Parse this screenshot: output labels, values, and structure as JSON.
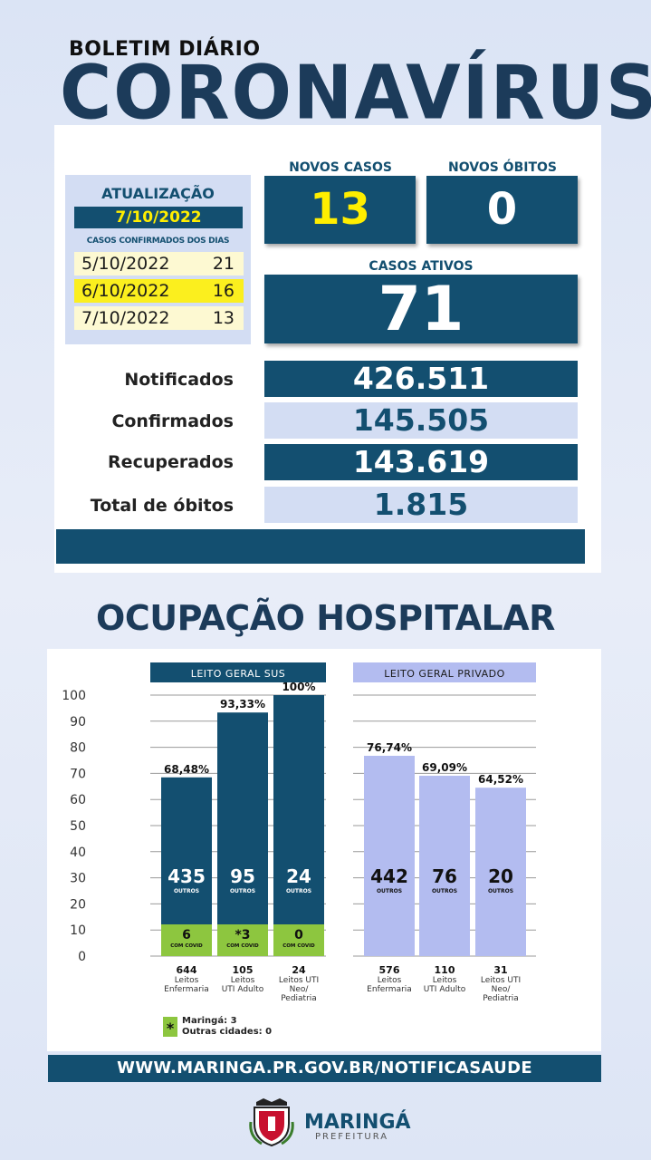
{
  "header": {
    "bulletin": "BOLETIM DIÁRIO",
    "title": "CORONAVÍRUS"
  },
  "update": {
    "label": "ATUALIZAÇÃO",
    "date": "7/10/2022",
    "cases_by_day_label": "CASOS CONFIRMADOS DOS DIAS",
    "days": [
      {
        "date": "5/10/2022",
        "value": "21"
      },
      {
        "date": "6/10/2022",
        "value": "16"
      },
      {
        "date": "7/10/2022",
        "value": "13"
      }
    ]
  },
  "stats": {
    "new_cases_label": "NOVOS CASOS",
    "new_cases": "13",
    "new_deaths_label": "NOVOS ÓBITOS",
    "new_deaths": "0",
    "active_label": "CASOS ATIVOS",
    "active": "71"
  },
  "totals": [
    {
      "label": "Notificados",
      "value": "426.511"
    },
    {
      "label": "Confirmados",
      "value": "145.505"
    },
    {
      "label": "Recuperados",
      "value": "143.619"
    },
    {
      "label": "Total de óbitos",
      "value": "1.815"
    }
  ],
  "hospital_title": "OCUPAÇÃO HOSPITALAR",
  "chart_data": {
    "type": "bar",
    "ylim": [
      0,
      100
    ],
    "yticks": [
      "0",
      "10",
      "20",
      "30",
      "40",
      "50",
      "60",
      "70",
      "80",
      "90",
      "100"
    ],
    "groups": [
      {
        "name": "LEITO GERAL SUS",
        "bars": [
          {
            "pct": 68.48,
            "pct_label": "68,48%",
            "others": "435",
            "others_label": "OUTROS",
            "covid": "6",
            "covid_label": "COM COVID",
            "covid_share": 4.5,
            "beds": "644",
            "line1": "Leitos",
            "line2": "Enfermaria",
            "line3": ""
          },
          {
            "pct": 93.33,
            "pct_label": "93,33%",
            "others": "95",
            "others_label": "OUTROS",
            "covid": "*3",
            "covid_label": "COM COVID",
            "covid_share": 4.5,
            "beds": "105",
            "line1": "Leitos",
            "line2": "UTI Adulto",
            "line3": ""
          },
          {
            "pct": 100,
            "pct_label": "100%",
            "others": "24",
            "others_label": "OUTROS",
            "covid": "0",
            "covid_label": "COM COVID",
            "covid_share": 4.5,
            "beds": "24",
            "line1": "Leitos UTI",
            "line2": "Neo/",
            "line3": "Pediatria"
          }
        ]
      },
      {
        "name": "LEITO GERAL PRIVADO",
        "bars": [
          {
            "pct": 76.74,
            "pct_label": "76,74%",
            "others": "442",
            "others_label": "OUTROS",
            "beds": "576",
            "line1": "Leitos",
            "line2": "Enfermaria",
            "line3": ""
          },
          {
            "pct": 69.09,
            "pct_label": "69,09%",
            "others": "76",
            "others_label": "OUTROS",
            "beds": "110",
            "line1": "Leitos",
            "line2": "UTI Adulto",
            "line3": ""
          },
          {
            "pct": 64.52,
            "pct_label": "64,52%",
            "others": "20",
            "others_label": "OUTROS",
            "beds": "31",
            "line1": "Leitos UTI",
            "line2": "Neo/",
            "line3": "Pediatria"
          }
        ]
      }
    ],
    "footnote_symbol": "*",
    "footnote_lines": [
      "Maringá: 3",
      "Outras cidades: 0"
    ],
    "colors": {
      "sus": "#134f70",
      "private": "#b3bcf0",
      "covid": "#8dc63f",
      "grid": "#9a9a9a"
    }
  },
  "footer": {
    "url": "WWW.MARINGA.PR.GOV.BR/NOTIFICASAUDE",
    "logo_name": "MARINGÁ",
    "logo_sub": "PREFEITURA"
  }
}
